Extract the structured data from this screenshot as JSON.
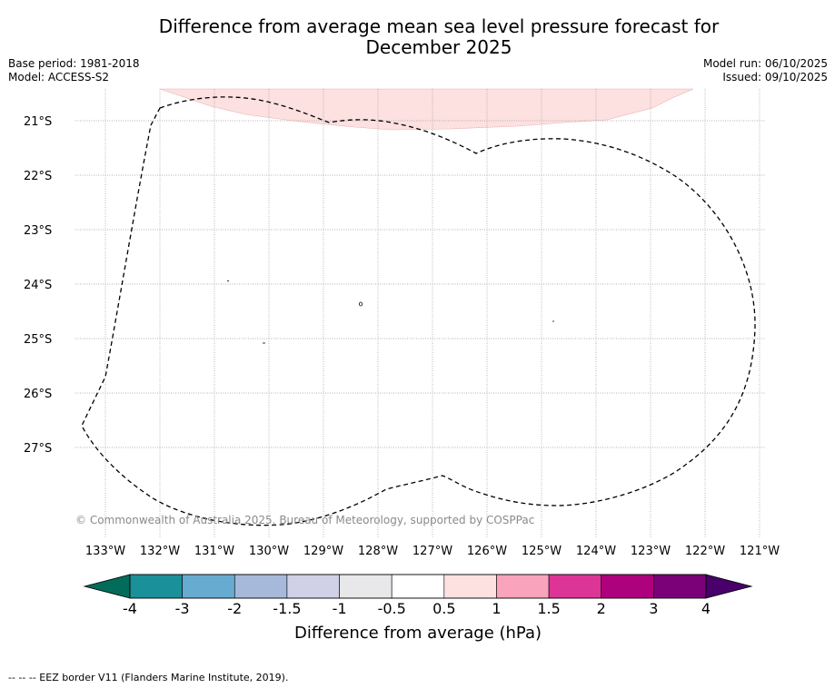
{
  "title_line1": "Difference from average mean sea level pressure forecast for",
  "title_line2": "December 2025",
  "base_period": "Base period: 1981-2018",
  "model": "Model: ACCESS-S2",
  "model_run": "Model run: 06/10/2025",
  "issued": "Issued: 09/10/2025",
  "map": {
    "lat_labels": [
      "21°S",
      "22°S",
      "23°S",
      "24°S",
      "25°S",
      "26°S",
      "27°S"
    ],
    "lon_labels": [
      "133°W",
      "132°W",
      "131°W",
      "130°W",
      "129°W",
      "128°W",
      "127°W",
      "126°W",
      "125°W",
      "124°W",
      "123°W",
      "122°W",
      "121°W"
    ],
    "copyright": "© Commonwealth of Australia 2025, Bureau of Meteorology, supported by COSPPac",
    "anomaly_region_value": "0.5 to 1 hPa",
    "anomaly_fill": "#fde0e0"
  },
  "colorbar": {
    "ticks": [
      "-4",
      "-3",
      "-2",
      "-1.5",
      "-1",
      "-0.5",
      "0.5",
      "1",
      "1.5",
      "2",
      "3",
      "4"
    ],
    "colors": [
      "#1a9199",
      "#67abd0",
      "#a6b9da",
      "#d0d1e6",
      "#e8e8eb",
      "#ffffff",
      "#fde0e0",
      "#f9a3bc",
      "#dd3497",
      "#ae017e",
      "#7a0177"
    ],
    "under_color": "#016c59",
    "over_color": "#49006a",
    "label": "Difference from average (hPa)"
  },
  "legend_footer": "--  --  -- EEZ border V11 (Flanders Marine Institute, 2019)."
}
